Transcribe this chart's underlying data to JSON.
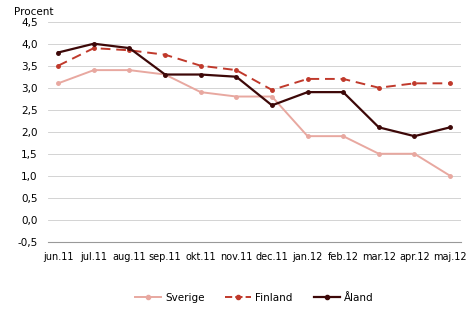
{
  "categories": [
    "jun.11",
    "jul.11",
    "aug.11",
    "sep.11",
    "okt.11",
    "nov.11",
    "dec.11",
    "jan.12",
    "feb.12",
    "mar.12",
    "apr.12",
    "maj.12"
  ],
  "sverige": [
    3.1,
    3.4,
    3.4,
    3.3,
    2.9,
    2.8,
    2.8,
    1.9,
    1.9,
    1.5,
    1.5,
    1.0
  ],
  "finland": [
    3.5,
    3.9,
    3.85,
    3.75,
    3.5,
    3.4,
    2.95,
    3.2,
    3.2,
    3.0,
    3.1,
    3.1
  ],
  "aland": [
    3.8,
    4.0,
    3.9,
    3.3,
    3.3,
    3.25,
    2.6,
    2.9,
    2.9,
    2.1,
    1.9,
    2.1
  ],
  "sverige_color": "#e8a8a0",
  "finland_color": "#c0392b",
  "aland_color": "#3d0808",
  "ylabel": "Procent",
  "ylim": [
    -0.5,
    4.5
  ],
  "yticks": [
    -0.5,
    0.0,
    0.5,
    1.0,
    1.5,
    2.0,
    2.5,
    3.0,
    3.5,
    4.0,
    4.5
  ],
  "ytick_labels": [
    "-0,5",
    "0,0",
    "0,5",
    "1,0",
    "1,5",
    "2,0",
    "2,5",
    "3,0",
    "3,5",
    "4,0",
    "4,5"
  ],
  "background_color": "#ffffff",
  "grid_color": "#cccccc"
}
